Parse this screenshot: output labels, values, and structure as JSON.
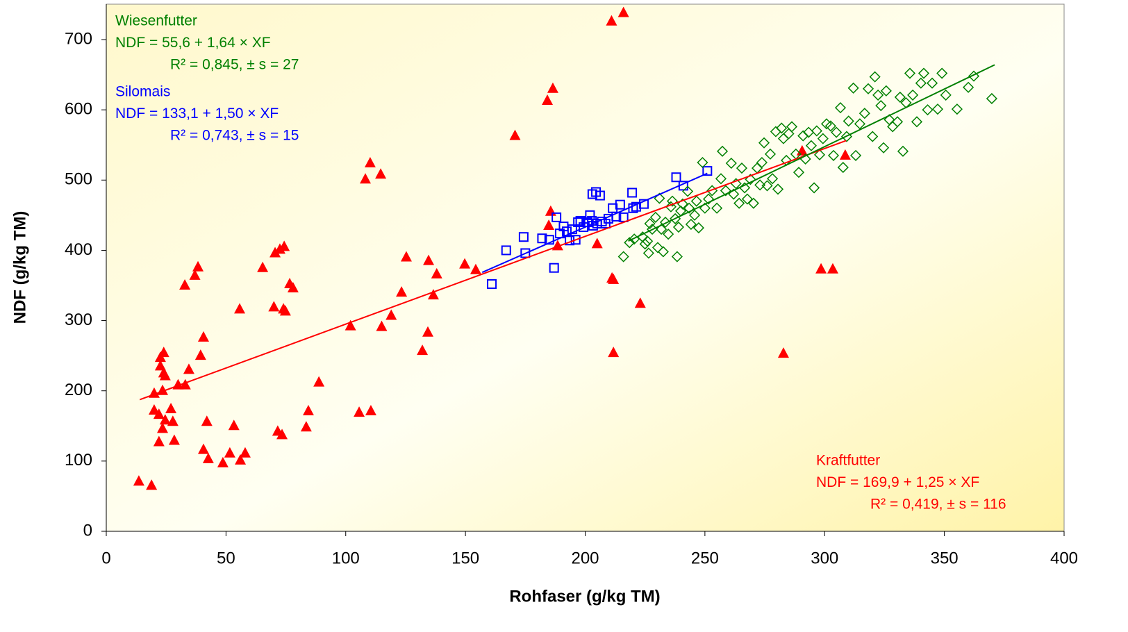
{
  "chart_data": {
    "type": "scatter",
    "x_label": "Rohfaser (g/kg TM)",
    "y_label": "NDF (g/kg TM)",
    "xlim": [
      0,
      400
    ],
    "xticks": [
      0,
      50,
      100,
      150,
      200,
      250,
      300,
      350,
      400
    ],
    "ylim": [
      0,
      700
    ],
    "yticks": [
      0,
      100,
      200,
      300,
      400,
      500,
      600,
      700
    ],
    "series": [
      {
        "name": "Kraftfutter",
        "color": "#ff0000",
        "marker": "triangle",
        "trendline": {
          "intercept": 169.9,
          "slope": 1.25,
          "xrange": [
            14,
            309
          ]
        },
        "x": [
          13.6,
          18.9,
          20,
          20,
          22,
          22,
          22.6,
          22.6,
          24,
          23.5,
          24,
          24.6,
          23.5,
          24.6,
          27,
          27.8,
          28.4,
          30,
          33,
          34.5,
          32.8,
          37,
          38.3,
          39.4,
          40.6,
          40.6,
          42,
          42.6,
          48.7,
          51.6,
          53.3,
          55.7,
          56,
          58,
          65.3,
          70,
          70.5,
          72.5,
          74.3,
          74,
          74.8,
          71.6,
          73.4,
          76.6,
          78,
          83.5,
          84.4,
          88.8,
          102,
          105.6,
          110.5,
          108.2,
          110.2,
          114.6,
          115,
          119,
          123.3,
          125.3,
          132,
          134.3,
          134.6,
          136.6,
          138,
          149.7,
          154.3,
          170.7,
          184.2,
          186.5,
          185.6,
          184.8,
          188.5,
          205,
          211.2,
          211.8,
          211.8,
          211,
          216,
          223,
          282.8,
          290.6,
          298.5,
          303.4,
          308.6
        ],
        "values": [
          71,
          65,
          172,
          196,
          166,
          127,
          235,
          247,
          254,
          200,
          225,
          221,
          146,
          158,
          174,
          156,
          129,
          208,
          208,
          230,
          350,
          364,
          376,
          250,
          276,
          116,
          156,
          103,
          97,
          111,
          150,
          316,
          101,
          111,
          375,
          319,
          396,
          401,
          405,
          316,
          313,
          142,
          137,
          352,
          346,
          148,
          171,
          212,
          292,
          169,
          171,
          501,
          524,
          508,
          291,
          307,
          340,
          390,
          257,
          283,
          385,
          336,
          366,
          380,
          372,
          563,
          613,
          630,
          455,
          435,
          406,
          409,
          360,
          358,
          254,
          726,
          738,
          324,
          253,
          541,
          373,
          373,
          535
        ]
      },
      {
        "name": "Silomais",
        "color": "#0000ff",
        "marker": "square",
        "trendline": {
          "intercept": 133.1,
          "slope": 1.5,
          "xrange": [
            157,
            251
          ]
        },
        "x": [
          161,
          167,
          174.3,
          175,
          182,
          185,
          187,
          188,
          189.4,
          191,
          192.3,
          193.5,
          194.6,
          196,
          197,
          198,
          199.3,
          201,
          202,
          202.8,
          203,
          204.5,
          203.3,
          205,
          206.2,
          207,
          208.5,
          209.7,
          211.5,
          213,
          214.6,
          216,
          219.6,
          220,
          221.3,
          224.5,
          238,
          241,
          251
        ],
        "values": [
          352,
          400,
          419,
          396,
          417,
          415,
          375,
          447,
          424,
          434,
          427,
          414,
          430,
          415,
          440,
          442,
          433,
          440,
          450,
          442,
          480,
          483,
          435,
          438,
          478,
          441,
          438,
          445,
          460,
          448,
          465,
          447,
          482,
          460,
          462,
          466,
          504,
          492,
          513
        ]
      },
      {
        "name": "Wiesenfutter",
        "color": "#008000",
        "marker": "diamond",
        "trendline": {
          "intercept": 55.6,
          "slope": 1.64,
          "xrange": [
            218,
            371
          ]
        },
        "x": [
          216,
          218.5,
          220.5,
          224,
          225,
          226,
          226.5,
          227,
          228,
          229.4,
          230.3,
          231,
          231.8,
          232.6,
          233.5,
          234.7,
          235.8,
          236.4,
          237.6,
          238.4,
          239,
          239.9,
          240.7,
          242.8,
          243.4,
          244.2,
          245.7,
          246.5,
          247.4,
          249,
          250,
          251.5,
          253,
          255,
          257.3,
          256.7,
          258.7,
          261,
          262,
          263,
          264.3,
          265.4,
          266.6,
          267.7,
          269,
          270.3,
          271.8,
          273,
          273.8,
          274.7,
          276,
          277.3,
          278.2,
          279.6,
          280.5,
          282,
          282.8,
          284,
          285,
          286.3,
          288,
          289.2,
          291,
          292,
          293.3,
          294.4,
          295.6,
          296.7,
          297.9,
          299.3,
          300.8,
          302.5,
          303.7,
          304.9,
          306.6,
          307.7,
          309.2,
          310,
          312,
          313,
          314.7,
          316.7,
          318.2,
          320,
          321,
          322.3,
          323.5,
          324.6,
          325.7,
          327,
          328.4,
          330.4,
          331.5,
          332.7,
          334,
          335.6,
          336.8,
          338.5,
          340.2,
          341.4,
          343,
          344.9,
          347.2,
          349,
          350.6,
          355.3,
          360,
          362.3,
          369.8
        ],
        "values": [
          391,
          411,
          416,
          419,
          409,
          413,
          396,
          438,
          430,
          447,
          404,
          474,
          430,
          398,
          440,
          423,
          462,
          470,
          445,
          391,
          433,
          456,
          466,
          484,
          460,
          437,
          450,
          470,
          432,
          525,
          460,
          473,
          485,
          460,
          541,
          502,
          485,
          524,
          480,
          495,
          467,
          517,
          489,
          473,
          501,
          467,
          517,
          493,
          525,
          553,
          492,
          537,
          502,
          569,
          487,
          574,
          559,
          528,
          566,
          576,
          537,
          511,
          563,
          530,
          568,
          549,
          489,
          570,
          536,
          559,
          580,
          577,
          535,
          568,
          603,
          518,
          562,
          584,
          631,
          535,
          580,
          595,
          630,
          562,
          647,
          621,
          606,
          546,
          627,
          586,
          576,
          583,
          618,
          541,
          610,
          652,
          621,
          583,
          638,
          652,
          600,
          638,
          601,
          652,
          621,
          601,
          632,
          648,
          616
        ]
      }
    ],
    "annotations": [
      {
        "color": "#008000",
        "lines": [
          "Wiesenfutter",
          "NDF = 55,6 + 1,64 × XF",
          "R² = 0,845, ± s = 27"
        ]
      },
      {
        "color": "#0000ff",
        "lines": [
          "Silomais",
          "NDF = 133,1 + 1,50 × XF",
          "R² = 0,743, ± s = 15"
        ]
      },
      {
        "color": "#ff0000",
        "lines": [
          "Kraftfutter",
          "NDF = 169,9 + 1,25 × XF",
          "R² = 0,419, ± s = 116"
        ]
      }
    ]
  }
}
